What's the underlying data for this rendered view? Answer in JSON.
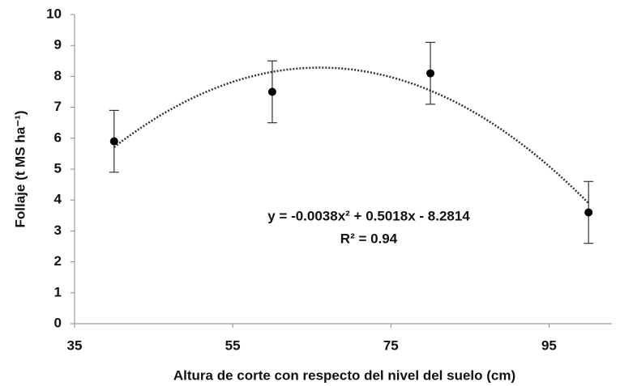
{
  "chart_data": {
    "type": "scatter",
    "x_label": "Altura de corte con respecto del nivel del suelo (cm)",
    "y_label": "Follaje (t MS ha⁻¹)",
    "series": [
      {
        "x": [
          40,
          60,
          80,
          100
        ],
        "values": [
          5.9,
          7.5,
          8.1,
          3.6
        ],
        "errors": [
          1.0,
          1.0,
          1.0,
          1.0
        ],
        "color": "#000000"
      }
    ],
    "xlim": [
      35,
      105
    ],
    "xticks": [
      35,
      55,
      75,
      95
    ],
    "ylim": [
      0,
      10
    ],
    "yticks": [
      0,
      1,
      2,
      3,
      4,
      5,
      6,
      7,
      8,
      9,
      10
    ],
    "trendline": {
      "coefficients": [
        -0.0038,
        0.5018,
        -8.2814
      ],
      "equation": "y = -0.0038x² + 0.5018x - 8.2814",
      "r2": "R² = 0.94"
    }
  }
}
